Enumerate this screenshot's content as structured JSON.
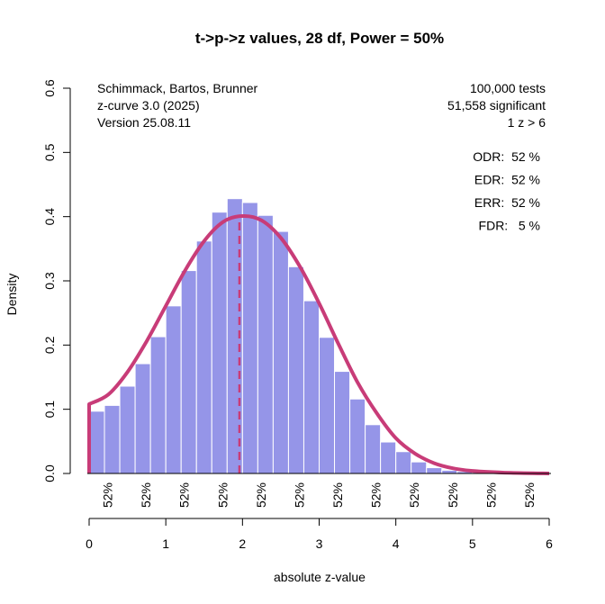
{
  "chart_data": {
    "type": "bar",
    "title": "t->p->z values, 28 df, Power = 50%",
    "xlabel": "absolute z-value",
    "ylabel": "Density",
    "xlim": [
      0,
      6
    ],
    "ylim": [
      0,
      0.6
    ],
    "x_ticks": [
      "0",
      "1",
      "2",
      "3",
      "4",
      "5",
      "6"
    ],
    "y_ticks": [
      "0.0",
      "0.1",
      "0.2",
      "0.3",
      "0.4",
      "0.5",
      "0.6"
    ],
    "bin_width": 0.2,
    "bins": [
      {
        "x0": 0.0,
        "density": 0.097
      },
      {
        "x0": 0.2,
        "density": 0.106
      },
      {
        "x0": 0.4,
        "density": 0.136
      },
      {
        "x0": 0.6,
        "density": 0.171
      },
      {
        "x0": 0.8,
        "density": 0.213
      },
      {
        "x0": 1.0,
        "density": 0.261
      },
      {
        "x0": 1.2,
        "density": 0.316
      },
      {
        "x0": 1.4,
        "density": 0.362
      },
      {
        "x0": 1.6,
        "density": 0.407
      },
      {
        "x0": 1.8,
        "density": 0.428
      },
      {
        "x0": 2.0,
        "density": 0.422
      },
      {
        "x0": 2.2,
        "density": 0.402
      },
      {
        "x0": 2.4,
        "density": 0.377
      },
      {
        "x0": 2.6,
        "density": 0.322
      },
      {
        "x0": 2.8,
        "density": 0.269
      },
      {
        "x0": 3.0,
        "density": 0.212
      },
      {
        "x0": 3.2,
        "density": 0.159
      },
      {
        "x0": 3.4,
        "density": 0.116
      },
      {
        "x0": 3.6,
        "density": 0.076
      },
      {
        "x0": 3.8,
        "density": 0.049
      },
      {
        "x0": 4.0,
        "density": 0.034
      },
      {
        "x0": 4.2,
        "density": 0.018
      },
      {
        "x0": 4.4,
        "density": 0.009
      },
      {
        "x0": 4.6,
        "density": 0.005
      },
      {
        "x0": 4.8,
        "density": 0.003
      },
      {
        "x0": 5.0,
        "density": 0.002
      },
      {
        "x0": 5.2,
        "density": 0.001
      },
      {
        "x0": 5.4,
        "density": 0.001
      },
      {
        "x0": 5.6,
        "density": 0.001
      },
      {
        "x0": 5.8,
        "density": 0.001
      }
    ],
    "curve": {
      "x": [
        0,
        0.25,
        0.5,
        0.75,
        1.0,
        1.25,
        1.5,
        1.75,
        2.0,
        2.25,
        2.5,
        2.75,
        3.0,
        3.25,
        3.5,
        3.75,
        4.0,
        4.25,
        4.5,
        4.75,
        5.0,
        5.5,
        6.0
      ],
      "y": [
        0.108,
        0.123,
        0.158,
        0.206,
        0.261,
        0.316,
        0.362,
        0.392,
        0.401,
        0.394,
        0.367,
        0.322,
        0.265,
        0.202,
        0.142,
        0.094,
        0.055,
        0.031,
        0.016,
        0.008,
        0.004,
        0.001,
        0.0
      ]
    },
    "dashed_line_x": 1.96,
    "bar_labels": [
      {
        "x": 0.1,
        "text": "52%"
      },
      {
        "x": 0.6,
        "text": "52%"
      },
      {
        "x": 1.1,
        "text": "52%"
      },
      {
        "x": 1.6,
        "text": "52%"
      },
      {
        "x": 2.1,
        "text": "52%"
      },
      {
        "x": 2.6,
        "text": "52%"
      },
      {
        "x": 3.1,
        "text": "52%"
      },
      {
        "x": 3.6,
        "text": "52%"
      },
      {
        "x": 4.1,
        "text": "52%"
      },
      {
        "x": 4.6,
        "text": "52%"
      },
      {
        "x": 5.1,
        "text": "52%"
      },
      {
        "x": 5.6,
        "text": "52%"
      }
    ],
    "annotations_left": [
      "Schimmack, Bartos, Brunner",
      "z-curve 3.0 (2025)",
      "Version 25.08.11"
    ],
    "annotations_right": [
      "100,000 tests",
      "51,558 significant",
      "1 z > 6"
    ],
    "stats": [
      "ODR:  52 %",
      "EDR:  52 %",
      "ERR:  52 %",
      "FDR:   5 %"
    ],
    "colors": {
      "bars": "#9595e8",
      "curve": "#c83c78",
      "dashed_line": "#c83c78"
    }
  }
}
